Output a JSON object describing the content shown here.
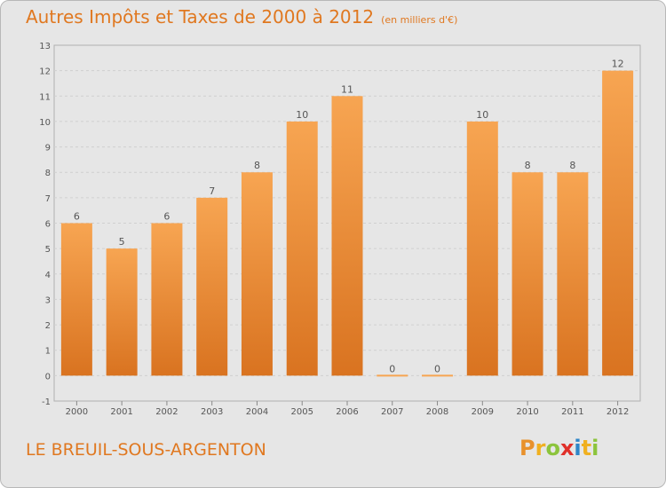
{
  "chart_data": {
    "type": "bar",
    "title": "Autres Impôts et Taxes de 2000 à 2012",
    "subtitle": "(en milliers d'€)",
    "categories": [
      "2000",
      "2001",
      "2002",
      "2003",
      "2004",
      "2005",
      "2006",
      "2007",
      "2008",
      "2009",
      "2010",
      "2011",
      "2012"
    ],
    "values": [
      6,
      5,
      6,
      7,
      8,
      10,
      11,
      0,
      0,
      10,
      8,
      8,
      12
    ],
    "ylim": [
      -1,
      13
    ],
    "yticks": [
      -1,
      0,
      1,
      2,
      3,
      4,
      5,
      6,
      7,
      8,
      9,
      10,
      11,
      12,
      13
    ],
    "grid": true,
    "bar_color_top": "#f7a552",
    "bar_color_bottom": "#d97320"
  },
  "footer": {
    "commune": "LE BREUIL-SOUS-ARGENTON"
  },
  "brand": {
    "letters": [
      "P",
      "r",
      "o",
      "x",
      "i",
      "t",
      "i"
    ],
    "colors": [
      "#e8912c",
      "#f0b020",
      "#8cc43c",
      "#e0302a",
      "#2e86c8",
      "#f0b020",
      "#8cc43c"
    ]
  }
}
